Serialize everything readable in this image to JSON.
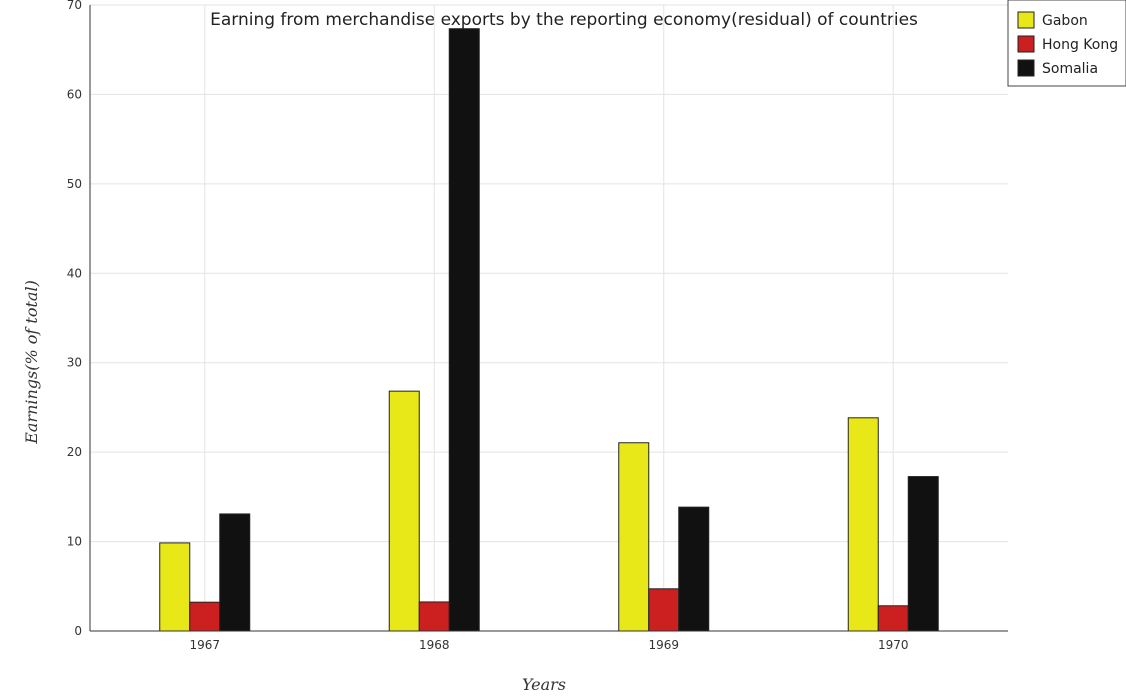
{
  "chart_data": {
    "type": "bar",
    "title": "Earning from merchandise exports by the reporting economy(residual) of countries",
    "xlabel": "Years",
    "ylabel": "Earnings(% of total)",
    "categories": [
      "1967",
      "1968",
      "1969",
      "1970"
    ],
    "series": [
      {
        "name": "Gabon",
        "color": "#e8e819",
        "values": [
          9.85,
          26.82,
          21.05,
          23.84
        ]
      },
      {
        "name": "Hong Kong",
        "color": "#cc1f1f",
        "values": [
          3.22,
          3.25,
          4.72,
          2.82
        ]
      },
      {
        "name": "Somalia",
        "color": "#111111",
        "values": [
          13.09,
          67.35,
          13.85,
          17.27
        ]
      }
    ],
    "ylim": [
      0,
      70
    ],
    "yticks": [
      0,
      10,
      20,
      30,
      40,
      50,
      60,
      70
    ],
    "grid": true,
    "legend_position": "top-right"
  }
}
